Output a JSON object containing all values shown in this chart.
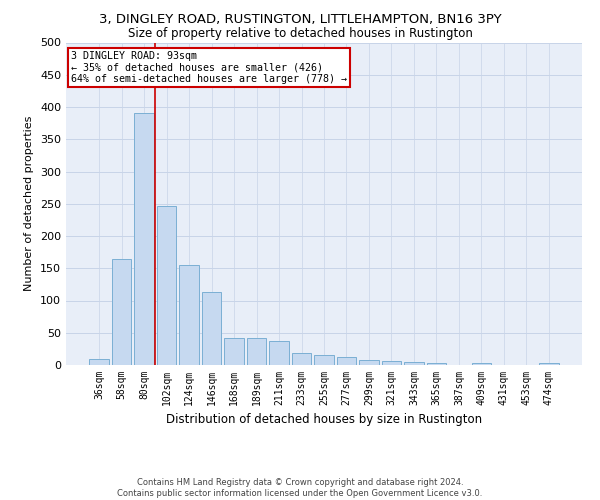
{
  "title": "3, DINGLEY ROAD, RUSTINGTON, LITTLEHAMPTON, BN16 3PY",
  "subtitle": "Size of property relative to detached houses in Rustington",
  "xlabel": "Distribution of detached houses by size in Rustington",
  "ylabel": "Number of detached properties",
  "categories": [
    "36sqm",
    "58sqm",
    "80sqm",
    "102sqm",
    "124sqm",
    "146sqm",
    "168sqm",
    "189sqm",
    "211sqm",
    "233sqm",
    "255sqm",
    "277sqm",
    "299sqm",
    "321sqm",
    "343sqm",
    "365sqm",
    "387sqm",
    "409sqm",
    "431sqm",
    "453sqm",
    "474sqm"
  ],
  "values": [
    10,
    165,
    390,
    247,
    155,
    113,
    42,
    42,
    37,
    18,
    15,
    13,
    8,
    6,
    5,
    3,
    0,
    3,
    0,
    0,
    3
  ],
  "bar_color": "#c6d9f0",
  "bar_edge_color": "#7bafd4",
  "grid_color": "#c8d4e8",
  "background_color": "#e8eef8",
  "vline_color": "#cc0000",
  "annotation_text": "3 DINGLEY ROAD: 93sqm\n← 35% of detached houses are smaller (426)\n64% of semi-detached houses are larger (778) →",
  "annotation_box_color": "#cc0000",
  "footer_line1": "Contains HM Land Registry data © Crown copyright and database right 2024.",
  "footer_line2": "Contains public sector information licensed under the Open Government Licence v3.0.",
  "ylim": [
    0,
    500
  ],
  "yticks": [
    0,
    50,
    100,
    150,
    200,
    250,
    300,
    350,
    400,
    450,
    500
  ]
}
